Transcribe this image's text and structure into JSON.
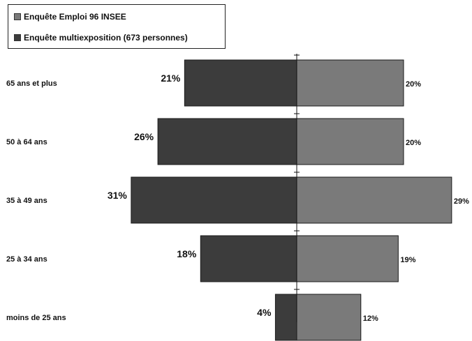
{
  "chart_data": {
    "type": "bar",
    "orientation": "horizontal-butterfly",
    "categories": [
      "65 ans et plus",
      "50 à 64 ans",
      "35 à 49 ans",
      "25 à 34 ans",
      "moins de 25 ans"
    ],
    "series": [
      {
        "name": "Enquête multiexposition (673 personnes)",
        "side": "left",
        "values": [
          21,
          26,
          31,
          18,
          4
        ],
        "labels": [
          "21%",
          "26%",
          "31%",
          "18%",
          "4%"
        ],
        "color": "#3c3c3c"
      },
      {
        "name": "Enquête Emploi 96 INSEE",
        "side": "right",
        "values": [
          20,
          20,
          29,
          19,
          12
        ],
        "labels": [
          "20%",
          "20%",
          "29%",
          "19%",
          "12%"
        ],
        "color": "#7a7a7a"
      }
    ],
    "legend_order": [
      "Enquête Emploi 96 INSEE",
      "Enquête multiexposition (673 personnes)"
    ],
    "legend_position": "top-left",
    "unit": "%"
  }
}
